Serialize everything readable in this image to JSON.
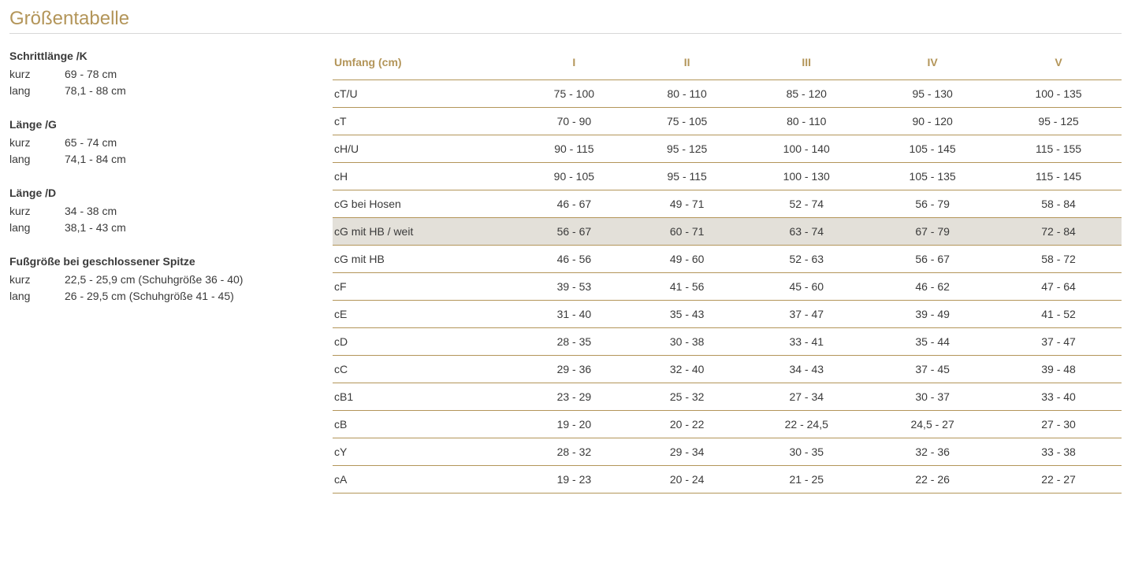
{
  "title": "Größentabelle",
  "colors": {
    "accent": "#b39559",
    "text": "#3a3a3a",
    "rowHighlight": "#e3e0d9",
    "hr": "#d8d8d8",
    "background": "#ffffff"
  },
  "side": {
    "groups": [
      {
        "title": "Schrittlänge /K",
        "rows": [
          {
            "label": "kurz",
            "value": "69 - 78 cm"
          },
          {
            "label": "lang",
            "value": "78,1 - 88 cm"
          }
        ]
      },
      {
        "title": "Länge /G",
        "rows": [
          {
            "label": "kurz",
            "value": "65 - 74 cm"
          },
          {
            "label": "lang",
            "value": "74,1 - 84 cm"
          }
        ]
      },
      {
        "title": "Länge /D",
        "rows": [
          {
            "label": "kurz",
            "value": "34 - 38 cm"
          },
          {
            "label": "lang",
            "value": "38,1 - 43 cm"
          }
        ]
      },
      {
        "title": "Fußgröße bei geschlossener Spitze",
        "rows": [
          {
            "label": "kurz",
            "value": "22,5 - 25,9 cm (Schuhgröße 36 - 40)"
          },
          {
            "label": "lang",
            "value": "26 - 29,5 cm (Schuhgröße 41 - 45)"
          }
        ]
      }
    ]
  },
  "table": {
    "columns": [
      "Umfang (cm)",
      "I",
      "II",
      "III",
      "IV",
      "V"
    ],
    "highlightRowIndex": 5,
    "rows": [
      [
        "cT/U",
        "75 - 100",
        "80 - 110",
        "85 - 120",
        "95 - 130",
        "100 - 135"
      ],
      [
        "cT",
        "70 - 90",
        "75 - 105",
        "80 - 110",
        "90 - 120",
        "95 - 125"
      ],
      [
        "cH/U",
        "90 - 115",
        "95 - 125",
        "100 - 140",
        "105 - 145",
        "115 - 155"
      ],
      [
        "cH",
        "90 - 105",
        "95 - 115",
        "100 - 130",
        "105 - 135",
        "115 - 145"
      ],
      [
        "cG bei Hosen",
        "46 - 67",
        "49 - 71",
        "52 - 74",
        "56 - 79",
        "58 - 84"
      ],
      [
        "cG mit HB / weit",
        "56 - 67",
        "60 - 71",
        "63 - 74",
        "67 - 79",
        "72 - 84"
      ],
      [
        "cG mit HB",
        "46 - 56",
        "49 - 60",
        "52 - 63",
        "56 - 67",
        "58 - 72"
      ],
      [
        "cF",
        "39 - 53",
        "41 - 56",
        "45 - 60",
        "46 - 62",
        "47 - 64"
      ],
      [
        "cE",
        "31 - 40",
        "35 - 43",
        "37 - 47",
        "39 - 49",
        "41 - 52"
      ],
      [
        "cD",
        "28 - 35",
        "30 - 38",
        "33 - 41",
        "35 - 44",
        "37 - 47"
      ],
      [
        "cC",
        "29 - 36",
        "32 - 40",
        "34 - 43",
        "37 - 45",
        "39 - 48"
      ],
      [
        "cB1",
        "23 - 29",
        "25 - 32",
        "27 - 34",
        "30 - 37",
        "33 - 40"
      ],
      [
        "cB",
        "19 - 20",
        "20 - 22",
        "22 - 24,5",
        "24,5 - 27",
        "27 - 30"
      ],
      [
        "cY",
        "28 - 32",
        "29 - 34",
        "30 - 35",
        "32 - 36",
        "33 - 38"
      ],
      [
        "cA",
        "19 - 23",
        "20 - 24",
        "21 - 25",
        "22 - 26",
        "22 - 27"
      ]
    ]
  }
}
